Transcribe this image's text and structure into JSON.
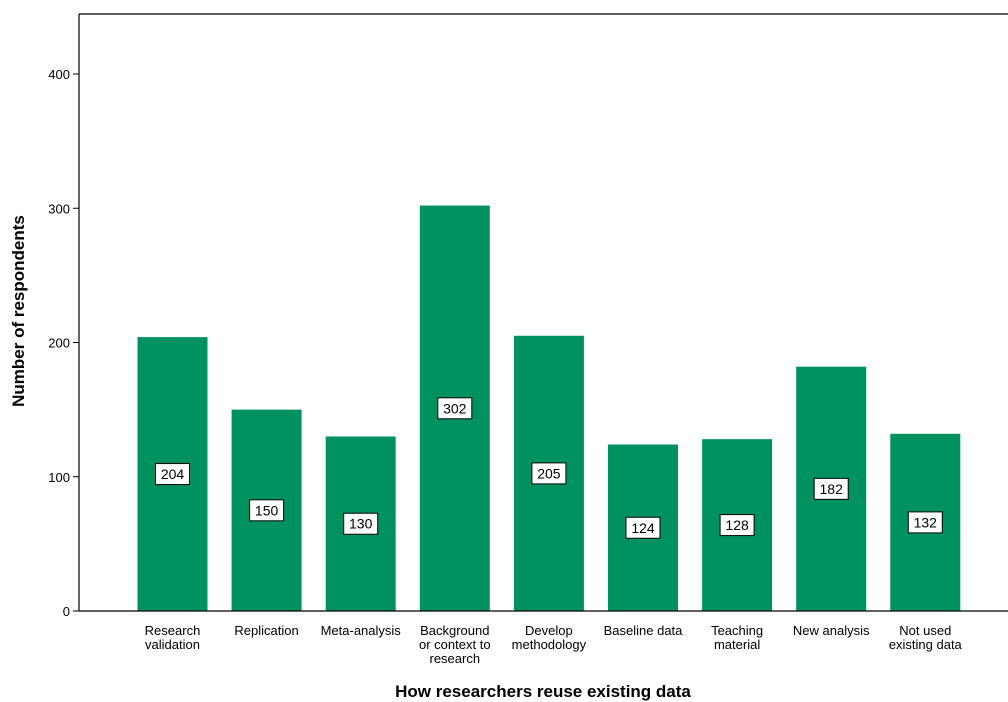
{
  "chart_data": {
    "type": "bar",
    "title": "",
    "xlabel": "How researchers reuse existing data",
    "ylabel": "Number of respondents",
    "categories": [
      [
        "Research",
        "validation"
      ],
      [
        "Replication"
      ],
      [
        "Meta-analysis"
      ],
      [
        "Background",
        "or context to",
        "research"
      ],
      [
        "Develop",
        "methodology"
      ],
      [
        "Baseline data"
      ],
      [
        "Teaching",
        "material"
      ],
      [
        "New analysis"
      ],
      [
        "Not used",
        "existing data"
      ]
    ],
    "values": [
      204,
      150,
      130,
      302,
      205,
      124,
      128,
      182,
      132
    ],
    "ylim": [
      0,
      450
    ],
    "yticks": [
      0,
      100,
      200,
      300,
      400
    ],
    "grid": false,
    "bar_color": "#009161",
    "data_labels": true
  }
}
